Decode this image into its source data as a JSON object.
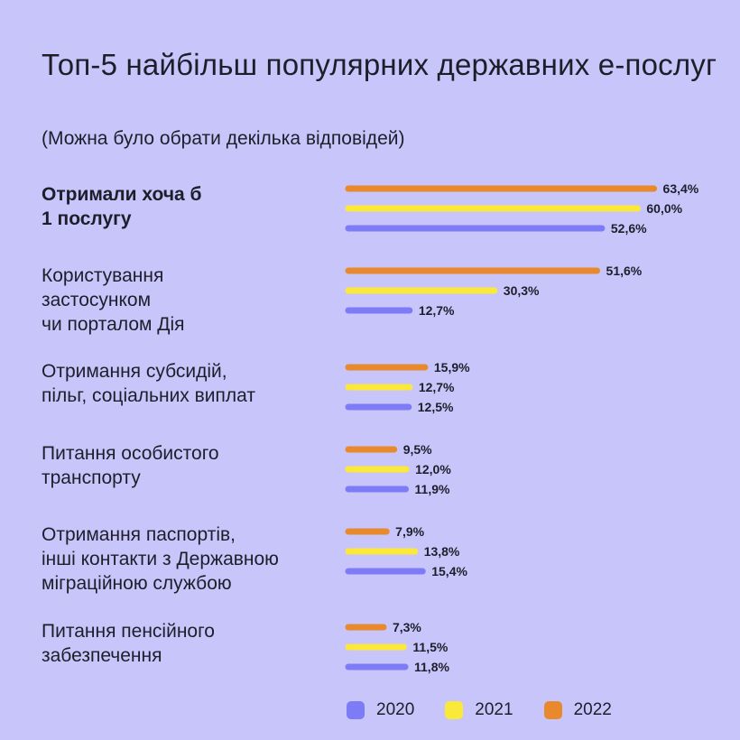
{
  "chart_data": {
    "type": "bar",
    "orientation": "horizontal",
    "title": "Топ-5 найбільш популярних державних е-послуг",
    "subtitle": "(Можна було обрати декілька відповідей)",
    "categories": [
      "Отримали хоча б\n1 послугу",
      "Користування\nзастосунком\nчи порталом Дія",
      "Отримання субсидій,\nпільг, соціальних виплат",
      "Питання особистого\nтранспорту",
      "Отримання паспортів,\nінші контакти з Державною\nміграційною службою",
      "Питання пенсійного\nзабезпечення"
    ],
    "series": [
      {
        "name": "2022",
        "color": "#e8892e",
        "values": [
          63.4,
          51.6,
          15.9,
          9.5,
          7.9,
          7.3
        ],
        "labels": [
          "63,4%",
          "51,6%",
          "15,9%",
          "9,5%",
          "7,9%",
          "7,3%"
        ]
      },
      {
        "name": "2021",
        "color": "#fbe93a",
        "values": [
          60.0,
          30.3,
          12.7,
          12.0,
          13.8,
          11.5
        ],
        "labels": [
          "60,0%",
          "30,3%",
          "12,7%",
          "12,0%",
          "13,8%",
          "11,5%"
        ]
      },
      {
        "name": "2020",
        "color": "#7d7cf6",
        "values": [
          52.6,
          12.7,
          12.5,
          11.9,
          15.4,
          11.8
        ],
        "labels": [
          "52,6%",
          "12,7%",
          "12,5%",
          "11,9%",
          "15,4%",
          "11,8%"
        ]
      }
    ],
    "legend": [
      {
        "name": "2020",
        "color": "#7d7cf6"
      },
      {
        "name": "2021",
        "color": "#fbe93a"
      },
      {
        "name": "2022",
        "color": "#e8892e"
      }
    ],
    "legend_position": "bottom",
    "xlim": [
      0,
      100
    ],
    "grid": false
  }
}
